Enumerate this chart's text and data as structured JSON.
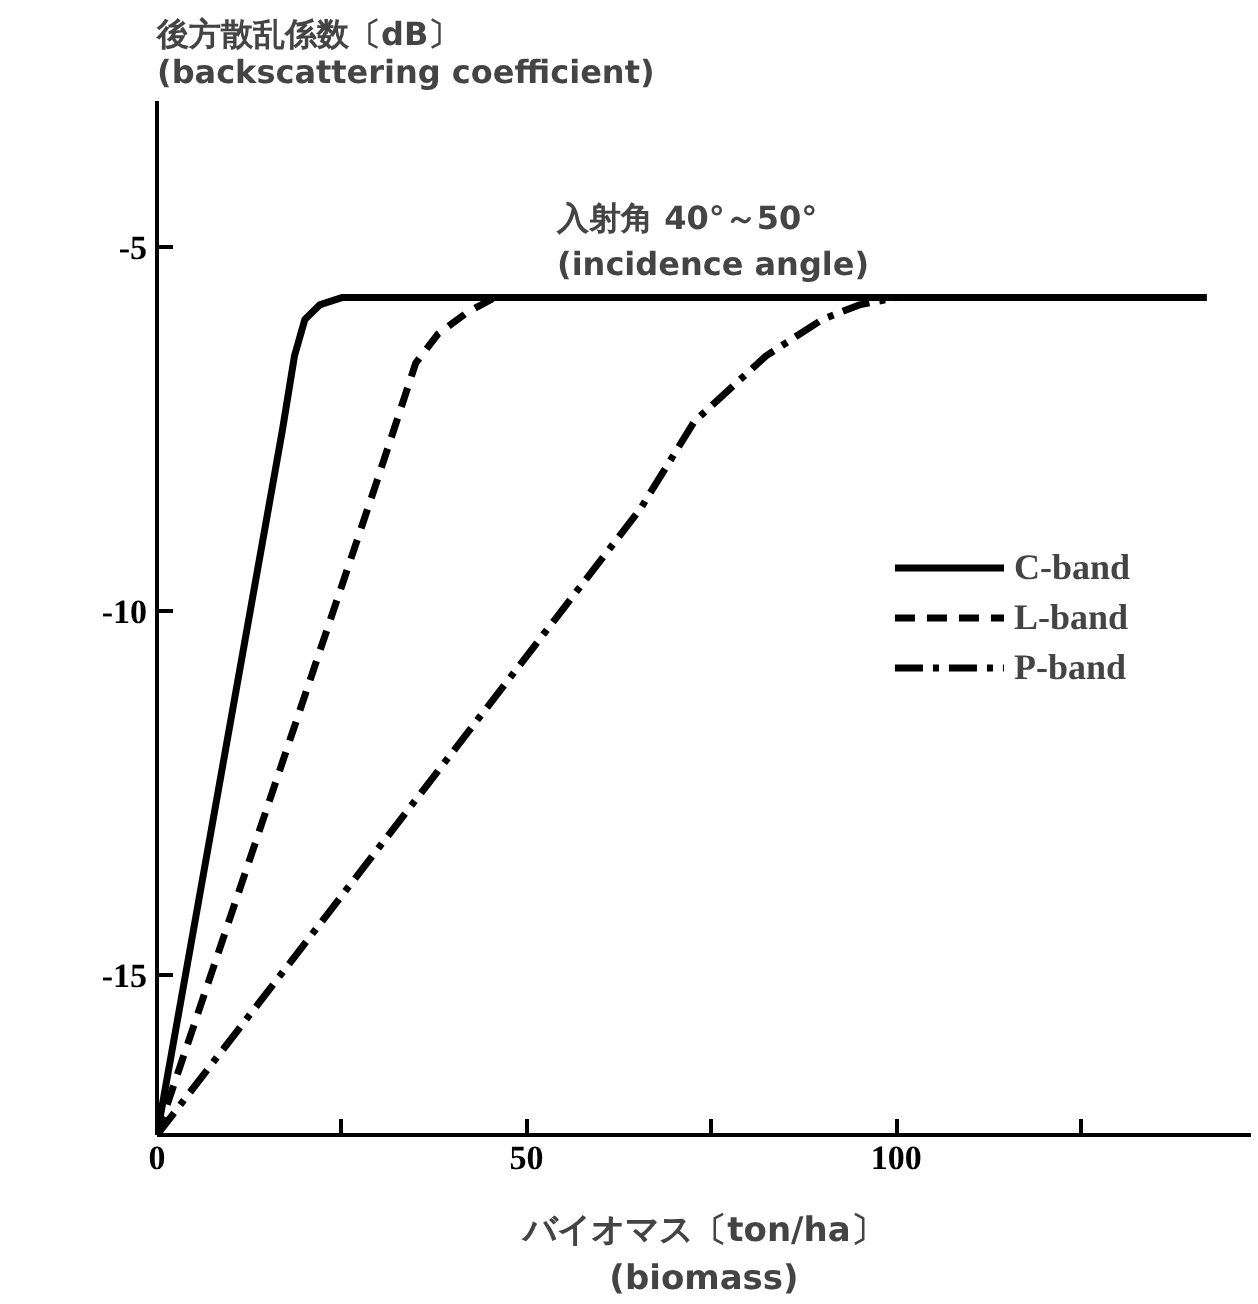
{
  "chart_data": {
    "type": "line",
    "ylabel": "後方散乱係数〔dB〕\n(backscattering coefficient)",
    "xlabel": "バイオマス〔ton/ha〕\n(biomass)",
    "annotations": [
      "入射角 40°～50°\n(incidence angle)"
    ],
    "xlim": [
      0,
      148
    ],
    "ylim": [
      -17.2,
      -3
    ],
    "xticks": [
      0,
      {
        "value": 25,
        "label": null
      },
      50,
      {
        "value": 75,
        "label": null
      },
      100,
      {
        "value": 125,
        "label": null
      }
    ],
    "yticks": [
      -15,
      -10,
      -5
    ],
    "grid": false,
    "legend": "right",
    "marker": "none",
    "series": [
      {
        "name": "C-band",
        "color": "#000000",
        "line_style": "solid",
        "x": [
          0,
          17,
          18.6,
          20,
          22,
          25,
          142
        ],
        "values": [
          -17.2,
          -7.5,
          -6.5,
          -6.0,
          -5.8,
          -5.7,
          -5.7
        ]
      },
      {
        "name": "L-band",
        "color": "#000000",
        "line_style": "dashed",
        "x": [
          0,
          29.5,
          35,
          38,
          42,
          45.7,
          142
        ],
        "values": [
          -17.2,
          -8.3,
          -6.6,
          -6.2,
          -5.9,
          -5.7,
          -5.7
        ]
      },
      {
        "name": "P-band",
        "color": "#000000",
        "line_style": "dashdot",
        "x": [
          0,
          65.4,
          72.7,
          82.4,
          90,
          95,
          100,
          142
        ],
        "values": [
          -17.2,
          -8.6,
          -7.4,
          -6.5,
          -6.0,
          -5.8,
          -5.7,
          -5.7
        ]
      }
    ]
  }
}
